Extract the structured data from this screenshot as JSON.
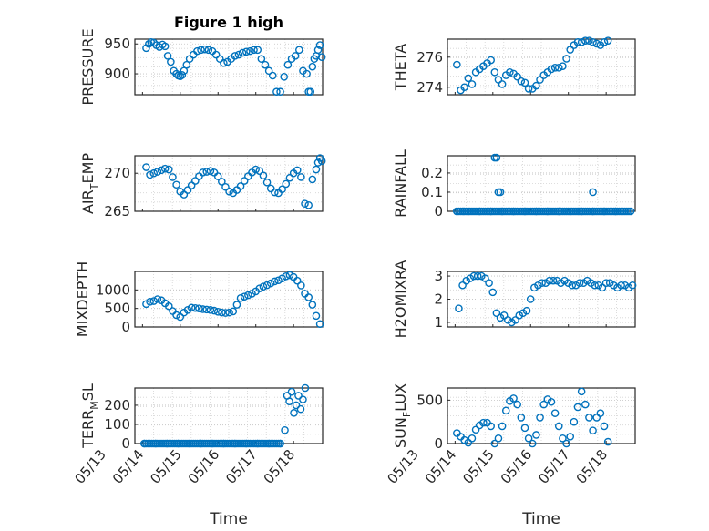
{
  "figure_title": "Figure 1 high",
  "colors": {
    "marker": "#0072BD",
    "axis": "#262626",
    "grid": "#D3D3D3"
  },
  "chart_data": [
    {
      "type": "scatter",
      "ylabel": "PRESSURE",
      "ylim": [
        865,
        958
      ],
      "yticks": [
        900,
        950
      ],
      "grid": true,
      "x": [
        0.05,
        0.12,
        0.18,
        0.25,
        0.32,
        0.4,
        0.48,
        0.55,
        0.62,
        0.7,
        0.78,
        0.85,
        0.9,
        0.95,
        1.0,
        1.05,
        1.12,
        1.2,
        1.3,
        1.4,
        1.5,
        1.6,
        1.7,
        1.8,
        1.9,
        2.0,
        2.1,
        2.2,
        2.3,
        2.4,
        2.5,
        2.6,
        2.7,
        2.8,
        2.9,
        3.0,
        3.1,
        3.2,
        3.3,
        3.4,
        3.5,
        3.6,
        3.7,
        3.8,
        3.9,
        4.0,
        4.1,
        4.2,
        4.3,
        4.35,
        4.4,
        4.45,
        4.5,
        4.55,
        4.6,
        4.65,
        4.7
      ],
      "y": [
        943,
        950,
        953,
        952,
        948,
        945,
        949,
        946,
        930,
        920,
        905,
        900,
        897,
        896,
        898,
        905,
        915,
        925,
        932,
        938,
        940,
        941,
        940,
        938,
        932,
        925,
        918,
        920,
        925,
        930,
        932,
        935,
        937,
        938,
        940,
        940,
        925,
        915,
        905,
        897,
        870,
        870,
        895,
        915,
        925,
        930,
        940,
        905,
        900,
        870,
        870,
        912,
        925,
        930,
        940,
        948,
        928
      ],
      "marker_count": 57
    },
    {
      "type": "scatter",
      "ylabel": "THETA",
      "ylim": [
        273.5,
        277.2
      ],
      "yticks": [
        274,
        276
      ],
      "grid": true,
      "x": [
        0.0,
        0.1,
        0.2,
        0.3,
        0.4,
        0.5,
        0.6,
        0.7,
        0.8,
        0.9,
        1.0,
        1.1,
        1.2,
        1.3,
        1.4,
        1.5,
        1.6,
        1.7,
        1.8,
        1.9,
        2.0,
        2.1,
        2.2,
        2.3,
        2.4,
        2.5,
        2.6,
        2.7,
        2.8,
        2.9,
        3.0,
        3.1,
        3.2,
        3.3,
        3.4,
        3.5,
        3.6,
        3.7,
        3.8,
        3.9,
        4.0
      ],
      "y": [
        275.5,
        273.8,
        274.0,
        274.6,
        274.2,
        275.0,
        275.2,
        275.4,
        275.6,
        275.8,
        275.0,
        274.5,
        274.2,
        274.8,
        275.0,
        274.9,
        274.7,
        274.4,
        274.3,
        273.9,
        273.9,
        274.1,
        274.5,
        274.8,
        275.0,
        275.2,
        275.3,
        275.3,
        275.4,
        275.9,
        276.5,
        276.8,
        277.0,
        277.0,
        277.1,
        277.1,
        277.0,
        276.9,
        276.8,
        277.0,
        277.1
      ],
      "marker_count": 41
    },
    {
      "type": "scatter",
      "ylabel": "AIRTEMP",
      "ylabel_main": "AIR",
      "ylabel_sub": "T",
      "ylabel_rest": "EMP",
      "ylim": [
        265,
        272.3
      ],
      "yticks": [
        265,
        270
      ],
      "grid": true,
      "x": [
        0.05,
        0.15,
        0.25,
        0.35,
        0.45,
        0.55,
        0.65,
        0.75,
        0.85,
        0.95,
        1.05,
        1.15,
        1.25,
        1.35,
        1.45,
        1.55,
        1.65,
        1.75,
        1.85,
        1.95,
        2.05,
        2.15,
        2.25,
        2.35,
        2.45,
        2.55,
        2.65,
        2.75,
        2.85,
        2.95,
        3.05,
        3.15,
        3.25,
        3.35,
        3.45,
        3.55,
        3.65,
        3.75,
        3.85,
        3.95,
        4.05,
        4.15,
        4.25,
        4.35,
        4.45,
        4.55,
        4.6,
        4.65,
        4.7
      ],
      "y": [
        270.8,
        269.8,
        270.0,
        270.2,
        270.4,
        270.6,
        270.5,
        269.5,
        268.5,
        267.6,
        267.2,
        267.8,
        268.4,
        269.0,
        269.6,
        270.1,
        270.2,
        270.3,
        270.1,
        269.6,
        268.9,
        268.2,
        267.6,
        267.4,
        267.8,
        268.3,
        269.0,
        269.6,
        270.1,
        270.5,
        270.3,
        269.7,
        268.8,
        268.0,
        267.5,
        267.4,
        267.9,
        268.6,
        269.4,
        270.0,
        270.4,
        269.5,
        266.0,
        265.8,
        269.2,
        270.5,
        271.4,
        272.0,
        271.6
      ],
      "marker_count": 49
    },
    {
      "type": "scatter",
      "ylabel": "RAINFALL",
      "ylim": [
        0,
        0.29
      ],
      "yticks": [
        0,
        0.1,
        0.2
      ],
      "grid": true,
      "x": [
        0.0,
        0.3,
        0.6,
        0.9,
        1.2,
        1.5,
        1.8,
        2.1,
        2.4,
        2.7,
        3.0,
        3.3,
        3.6,
        3.9,
        4.2
      ],
      "y": [
        0,
        0,
        0,
        0,
        0,
        0,
        0,
        0,
        0,
        0,
        0,
        0,
        0,
        0,
        0
      ],
      "spikes": [
        {
          "x": 1.0,
          "y": 0.28
        },
        {
          "x": 1.05,
          "y": 0.28
        },
        {
          "x": 1.1,
          "y": 0.1
        },
        {
          "x": 1.15,
          "y": 0.1
        },
        {
          "x": 3.6,
          "y": 0.1
        }
      ],
      "marker_count": 20
    },
    {
      "type": "scatter",
      "ylabel": "MIXDEPTH",
      "ylim": [
        0,
        1500
      ],
      "yticks": [
        0,
        500,
        1000
      ],
      "grid": true,
      "x": [
        0.05,
        0.15,
        0.25,
        0.35,
        0.45,
        0.55,
        0.65,
        0.75,
        0.85,
        0.95,
        1.05,
        1.15,
        1.25,
        1.35,
        1.45,
        1.55,
        1.65,
        1.75,
        1.85,
        1.95,
        2.05,
        2.15,
        2.25,
        2.35,
        2.45,
        2.55,
        2.65,
        2.75,
        2.85,
        2.95,
        3.05,
        3.15,
        3.25,
        3.35,
        3.45,
        3.55,
        3.65,
        3.75,
        3.85,
        3.95,
        4.05,
        4.15,
        4.25,
        4.35,
        4.45,
        4.55,
        4.65
      ],
      "y": [
        620,
        680,
        700,
        750,
        720,
        640,
        560,
        430,
        320,
        270,
        390,
        460,
        520,
        510,
        500,
        480,
        470,
        460,
        440,
        410,
        390,
        380,
        390,
        420,
        600,
        780,
        820,
        860,
        900,
        960,
        1040,
        1090,
        1130,
        1180,
        1230,
        1260,
        1310,
        1370,
        1400,
        1350,
        1250,
        1120,
        900,
        800,
        600,
        300,
        80
      ],
      "marker_count": 47
    },
    {
      "type": "scatter",
      "ylabel": "H2OMIXRA",
      "ylim": [
        0.8,
        3.2
      ],
      "yticks": [
        1,
        2,
        3
      ],
      "grid": true,
      "x": [
        0.05,
        0.15,
        0.25,
        0.35,
        0.45,
        0.55,
        0.65,
        0.75,
        0.85,
        0.95,
        1.05,
        1.15,
        1.25,
        1.35,
        1.45,
        1.55,
        1.65,
        1.75,
        1.85,
        1.95,
        2.05,
        2.15,
        2.25,
        2.35,
        2.45,
        2.55,
        2.65,
        2.75,
        2.85,
        2.95,
        3.05,
        3.15,
        3.25,
        3.35,
        3.45,
        3.55,
        3.65,
        3.75,
        3.85,
        3.95,
        4.05,
        4.15,
        4.25,
        4.35,
        4.45,
        4.55,
        4.65
      ],
      "y": [
        1.6,
        2.6,
        2.8,
        2.9,
        3.0,
        3.0,
        3.0,
        2.9,
        2.7,
        2.3,
        1.4,
        1.2,
        1.3,
        1.1,
        1.0,
        1.1,
        1.3,
        1.4,
        1.5,
        2.0,
        2.5,
        2.6,
        2.7,
        2.7,
        2.8,
        2.8,
        2.8,
        2.7,
        2.8,
        2.7,
        2.6,
        2.6,
        2.7,
        2.7,
        2.8,
        2.7,
        2.6,
        2.6,
        2.5,
        2.7,
        2.7,
        2.6,
        2.5,
        2.6,
        2.6,
        2.5,
        2.6
      ],
      "marker_count": 47
    },
    {
      "type": "scatter",
      "ylabel": "TERRMSL",
      "ylabel_main": "TERR",
      "ylabel_sub": "M",
      "ylabel_rest": "SL",
      "ylim": [
        0,
        290
      ],
      "yticks": [
        0,
        100,
        200
      ],
      "grid": true,
      "x": [
        0.0,
        0.3,
        0.6,
        0.9,
        1.2,
        1.5,
        1.8,
        2.1,
        2.4,
        2.7,
        3.0,
        3.3,
        3.6,
        3.72,
        3.78,
        3.84,
        3.9,
        3.96,
        4.02,
        4.08,
        4.14,
        4.2,
        4.26
      ],
      "y": [
        0,
        0,
        0,
        0,
        0,
        0,
        0,
        0,
        0,
        0,
        0,
        0,
        0,
        70,
        250,
        220,
        270,
        160,
        200,
        250,
        180,
        230,
        290
      ],
      "marker_count": 23
    },
    {
      "type": "scatter",
      "ylabel": "SUNFLUX",
      "ylabel_main": "SUN",
      "ylabel_sub": "F",
      "ylabel_rest": "LUX",
      "ylim": [
        0,
        640
      ],
      "yticks": [
        0,
        500
      ],
      "grid": true,
      "x": [
        0.0,
        0.1,
        0.2,
        0.3,
        0.4,
        0.5,
        0.6,
        0.7,
        0.8,
        0.9,
        1.0,
        1.1,
        1.2,
        1.3,
        1.4,
        1.5,
        1.6,
        1.7,
        1.8,
        1.9,
        2.0,
        2.1,
        2.2,
        2.3,
        2.4,
        2.5,
        2.6,
        2.7,
        2.8,
        2.9,
        3.0,
        3.1,
        3.2,
        3.3,
        3.4,
        3.5,
        3.6,
        3.7,
        3.8,
        3.9,
        4.0
      ],
      "y": [
        120,
        80,
        40,
        10,
        60,
        160,
        210,
        240,
        240,
        200,
        0,
        60,
        200,
        380,
        490,
        520,
        450,
        300,
        180,
        60,
        0,
        100,
        300,
        450,
        510,
        480,
        350,
        200,
        60,
        0,
        80,
        250,
        420,
        600,
        450,
        300,
        150,
        300,
        350,
        200,
        20
      ],
      "marker_count": 41
    }
  ],
  "xaxis": {
    "tick_labels": [
      "05/13",
      "05/14",
      "05/15",
      "05/16",
      "05/17",
      "05/18"
    ],
    "label": "Time"
  }
}
